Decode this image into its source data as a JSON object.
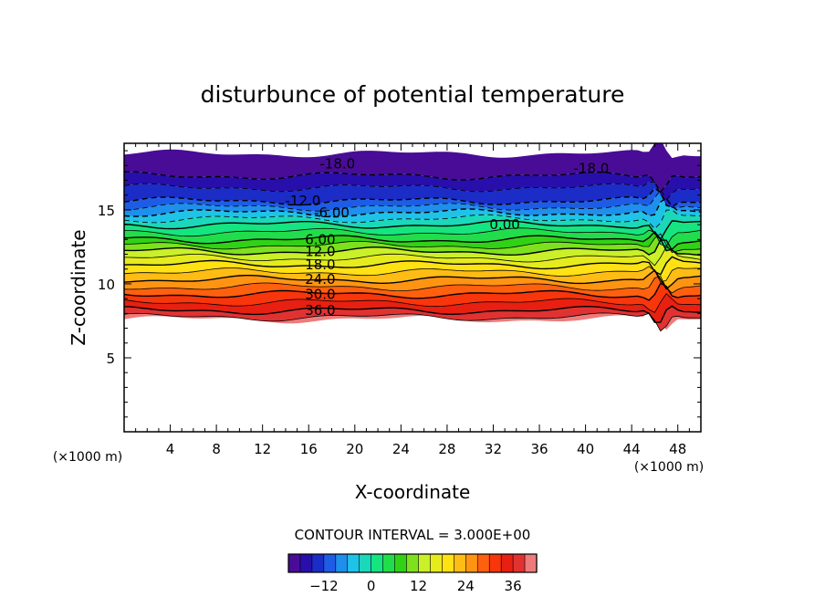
{
  "chart_data": {
    "type": "heatmap",
    "subtype": "filled-contour",
    "title": "disturbunce of potential temperature",
    "xlabel": "X-coordinate",
    "ylabel": "Z-coordinate",
    "x_unit": "(×1000 m)",
    "z_unit": "(×1000 m)",
    "xlim": [
      0,
      50
    ],
    "ylim": [
      0,
      19.5
    ],
    "x_ticks": [
      4,
      8,
      12,
      16,
      20,
      24,
      28,
      32,
      36,
      40,
      44,
      48
    ],
    "y_ticks": [
      5,
      10,
      15
    ],
    "grid": false,
    "contour_interval": 3.0,
    "contour_interval_label": "CONTOUR INTERVAL = 3.000E+00",
    "contour_labels": [
      {
        "text": "-18.0",
        "x": 18.5,
        "z": 18.1
      },
      {
        "text": "-18.0",
        "x": 40.5,
        "z": 17.8
      },
      {
        "text": "-12.0",
        "x": 15.5,
        "z": 15.6
      },
      {
        "text": "-6.00",
        "x": 18.0,
        "z": 14.8
      },
      {
        "text": "0.00",
        "x": 33.0,
        "z": 14.0
      },
      {
        "text": "6.00",
        "x": 17.0,
        "z": 13.0
      },
      {
        "text": "12.0",
        "x": 17.0,
        "z": 12.2
      },
      {
        "text": "18.0",
        "x": 17.0,
        "z": 11.3
      },
      {
        "text": "24.0",
        "x": 17.0,
        "z": 10.3
      },
      {
        "text": "30.0",
        "x": 17.0,
        "z": 9.3
      },
      {
        "text": "36.0",
        "x": 17.0,
        "z": 8.2
      }
    ],
    "field_profile": {
      "description_of_values": "disturbance value vs z (x≈28, interior)",
      "z": [
        7.6,
        8.2,
        9.3,
        10.3,
        11.3,
        12.2,
        13.0,
        14.0,
        14.8,
        15.6,
        16.5,
        17.3
      ],
      "value": [
        40,
        36,
        30,
        24,
        18,
        12,
        6,
        0,
        -6,
        -12,
        -15,
        -18
      ]
    },
    "colorbar": {
      "ticks": [
        -12,
        0,
        12,
        24,
        36
      ],
      "range": [
        -21,
        42
      ],
      "colors": [
        "#5a0a8c",
        "#1a10b4",
        "#1e6cf0",
        "#1ecfe6",
        "#14e678",
        "#32d214",
        "#c8f028",
        "#ffe614",
        "#ffa014",
        "#ff3c0a",
        "#dc1414",
        "#f5a0a0"
      ]
    }
  }
}
